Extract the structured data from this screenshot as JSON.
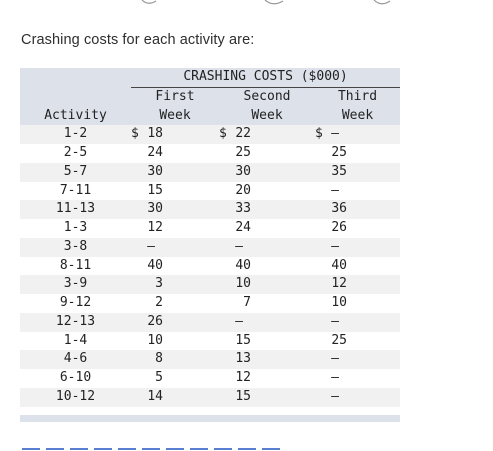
{
  "intro_text": "Crashing costs for each activity are:",
  "table": {
    "title": "CRASHING COSTS ($000)",
    "activity_header": "Activity",
    "week_headers": [
      {
        "line1": "First",
        "line2": "Week"
      },
      {
        "line1": "Second",
        "line2": "Week"
      },
      {
        "line1": "Third",
        "line2": "Week"
      }
    ],
    "currency_symbol": "$",
    "rows": [
      {
        "activity": "1-2",
        "w1": "18",
        "w2": "22",
        "w3": "—"
      },
      {
        "activity": "2-5",
        "w1": "24",
        "w2": "25",
        "w3": "25"
      },
      {
        "activity": "5-7",
        "w1": "30",
        "w2": "30",
        "w3": "35"
      },
      {
        "activity": "7-11",
        "w1": "15",
        "w2": "20",
        "w3": "—"
      },
      {
        "activity": "11-13",
        "w1": "30",
        "w2": "33",
        "w3": "36"
      },
      {
        "activity": "1-3",
        "w1": "12",
        "w2": "24",
        "w3": "26"
      },
      {
        "activity": "3-8",
        "w1": "—",
        "w2": "—",
        "w3": "—"
      },
      {
        "activity": "8-11",
        "w1": "40",
        "w2": "40",
        "w3": "40"
      },
      {
        "activity": "3-9",
        "w1": "3",
        "w2": "10",
        "w3": "12"
      },
      {
        "activity": "9-12",
        "w1": "2",
        "w2": "7",
        "w3": "10"
      },
      {
        "activity": "12-13",
        "w1": "26",
        "w2": "—",
        "w3": "—"
      },
      {
        "activity": "1-4",
        "w1": "10",
        "w2": "15",
        "w3": "25"
      },
      {
        "activity": "4-6",
        "w1": "8",
        "w2": "13",
        "w3": "—"
      },
      {
        "activity": "6-10",
        "w1": "5",
        "w2": "12",
        "w3": "—"
      },
      {
        "activity": "10-12",
        "w1": "14",
        "w2": "15",
        "w3": "—"
      }
    ]
  },
  "colors": {
    "header_bg": "#dde1ea",
    "stripe_bg": "#f1f1f1",
    "text": "#222222"
  }
}
